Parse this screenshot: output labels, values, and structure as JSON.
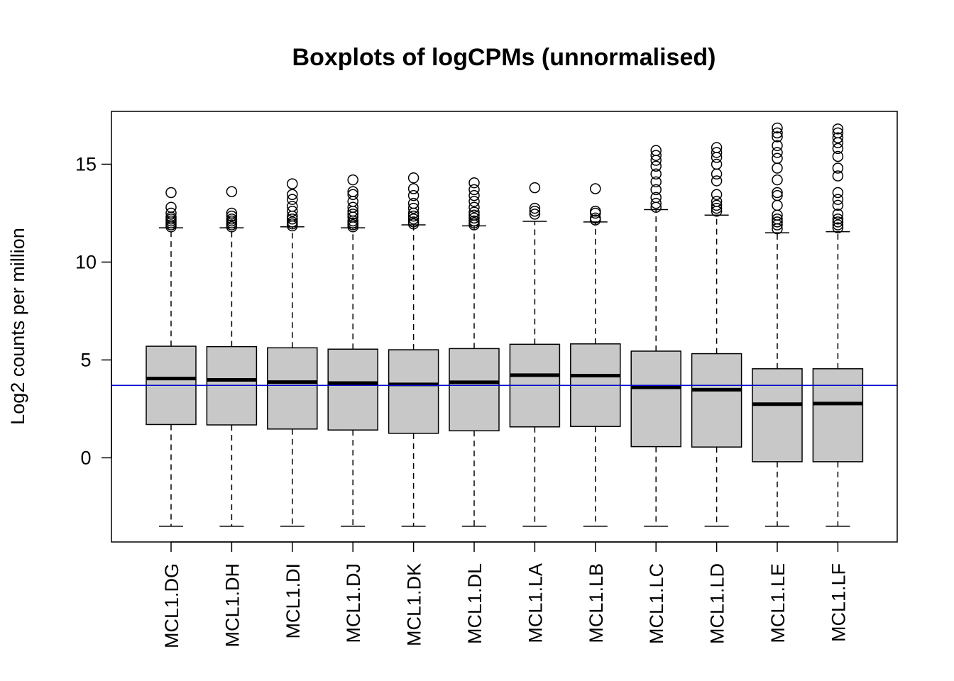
{
  "chart_data": {
    "type": "box",
    "title": "Boxplots of logCPMs (unnormalised)",
    "xlabel": "",
    "ylabel": "Log2 counts per million",
    "ylim": [
      -4.3,
      17.7
    ],
    "yticks": [
      0,
      5,
      10,
      15
    ],
    "reference_line": {
      "y": 3.7,
      "color": "#0000cc"
    },
    "box_fill": "#c8c8c8",
    "grid": false,
    "categories": [
      "MCL1.DG",
      "MCL1.DH",
      "MCL1.DI",
      "MCL1.DJ",
      "MCL1.DK",
      "MCL1.DL",
      "MCL1.LA",
      "MCL1.LB",
      "MCL1.LC",
      "MCL1.LD",
      "MCL1.LE",
      "MCL1.LF"
    ],
    "boxes": [
      {
        "min": -3.5,
        "q1": 1.7,
        "median": 4.05,
        "q3": 5.7,
        "max": 11.75,
        "outliers": [
          11.8,
          11.9,
          12.0,
          12.1,
          12.2,
          12.3,
          12.5,
          12.8,
          13.55
        ]
      },
      {
        "min": -3.5,
        "q1": 1.68,
        "median": 3.98,
        "q3": 5.68,
        "max": 11.75,
        "outliers": [
          11.8,
          11.9,
          12.0,
          12.1,
          12.2,
          12.35,
          12.5,
          13.6
        ]
      },
      {
        "min": -3.5,
        "q1": 1.47,
        "median": 3.87,
        "q3": 5.62,
        "max": 11.8,
        "outliers": [
          11.85,
          11.95,
          12.05,
          12.2,
          12.35,
          12.6,
          12.85,
          13.2,
          13.45,
          14.0
        ]
      },
      {
        "min": -3.5,
        "q1": 1.42,
        "median": 3.82,
        "q3": 5.55,
        "max": 11.75,
        "outliers": [
          11.8,
          11.9,
          12.0,
          12.1,
          12.3,
          12.45,
          12.6,
          12.8,
          13.1,
          13.45,
          13.6,
          14.2
        ]
      },
      {
        "min": -3.5,
        "q1": 1.25,
        "median": 3.75,
        "q3": 5.52,
        "max": 11.9,
        "outliers": [
          11.95,
          12.05,
          12.2,
          12.35,
          12.5,
          12.75,
          13.0,
          13.4,
          13.75,
          14.3
        ]
      },
      {
        "min": -3.5,
        "q1": 1.38,
        "median": 3.86,
        "q3": 5.58,
        "max": 11.85,
        "outliers": [
          11.9,
          12.0,
          12.1,
          12.25,
          12.4,
          12.55,
          12.8,
          13.1,
          13.4,
          13.7,
          14.05
        ]
      },
      {
        "min": -3.5,
        "q1": 1.58,
        "median": 4.22,
        "q3": 5.8,
        "max": 12.08,
        "outliers": [
          12.45,
          12.6,
          12.75,
          13.8
        ]
      },
      {
        "min": -3.5,
        "q1": 1.6,
        "median": 4.2,
        "q3": 5.82,
        "max": 12.05,
        "outliers": [
          12.15,
          12.25,
          12.5,
          12.6,
          13.75
        ]
      },
      {
        "min": -3.5,
        "q1": 0.57,
        "median": 3.6,
        "q3": 5.45,
        "max": 12.68,
        "outliers": [
          12.8,
          13.0,
          13.3,
          13.7,
          14.1,
          14.5,
          14.9,
          15.2,
          15.45,
          15.7
        ]
      },
      {
        "min": -3.5,
        "q1": 0.55,
        "median": 3.48,
        "q3": 5.32,
        "max": 12.4,
        "outliers": [
          12.6,
          12.75,
          12.9,
          13.1,
          13.45,
          14.15,
          14.5,
          15.0,
          15.35,
          15.6,
          15.85
        ]
      },
      {
        "min": -3.5,
        "q1": -0.2,
        "median": 2.74,
        "q3": 4.55,
        "max": 11.5,
        "outliers": [
          11.7,
          11.9,
          12.05,
          12.2,
          12.4,
          12.9,
          13.4,
          13.55,
          14.2,
          14.8,
          15.3,
          15.6,
          15.95,
          16.4,
          16.6,
          16.85
        ]
      },
      {
        "min": -3.5,
        "q1": -0.2,
        "median": 2.77,
        "q3": 4.55,
        "max": 11.55,
        "outliers": [
          11.75,
          11.9,
          12.05,
          12.2,
          12.45,
          12.9,
          13.2,
          13.55,
          14.4,
          14.8,
          15.4,
          15.8,
          16.1,
          16.35,
          16.6,
          16.8
        ]
      }
    ]
  }
}
